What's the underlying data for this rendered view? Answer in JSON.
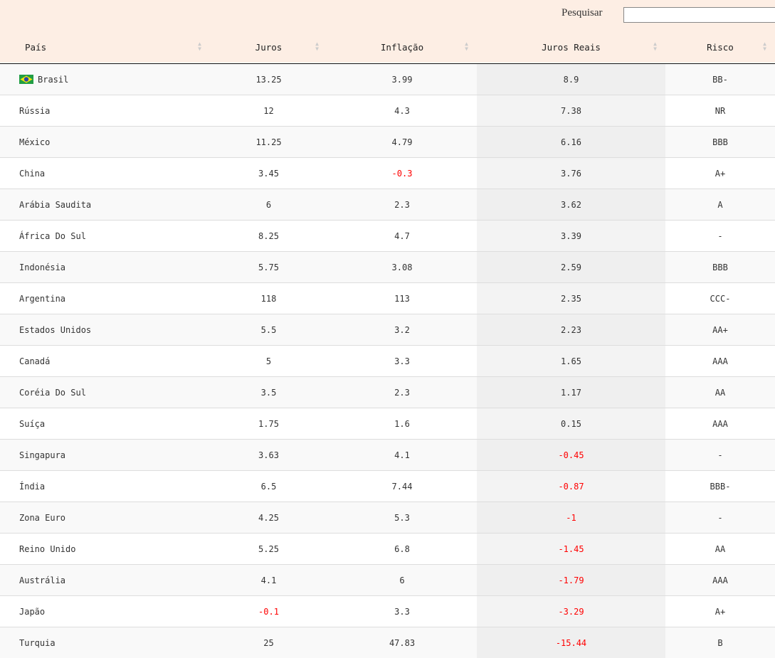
{
  "search_label": "Pesquisar",
  "table": {
    "headers": [
      "País",
      "Juros",
      "Inflação",
      "Juros Reais",
      "Risco"
    ],
    "rows": [
      [
        "Brasil",
        13.25,
        3.99,
        8.9,
        "BB-"
      ],
      [
        "Rússia",
        12,
        4.3,
        7.38,
        "NR"
      ],
      [
        "México",
        11.25,
        4.79,
        6.16,
        "BBB"
      ],
      [
        "China",
        3.45,
        -0.3,
        3.76,
        "A+"
      ],
      [
        "Arábia Saudita",
        6,
        2.3,
        3.62,
        "A"
      ],
      [
        "África Do Sul",
        8.25,
        4.7,
        3.39,
        "-"
      ],
      [
        "Indonésia",
        5.75,
        3.08,
        2.59,
        "BBB"
      ],
      [
        "Argentina",
        118,
        113,
        2.35,
        "CCC-"
      ],
      [
        "Estados Unidos",
        5.5,
        3.2,
        2.23,
        "AA+"
      ],
      [
        "Canadá",
        5,
        3.3,
        1.65,
        "AAA"
      ],
      [
        "Coréia Do Sul",
        3.5,
        2.3,
        1.17,
        "AA"
      ],
      [
        "Suíça",
        1.75,
        1.6,
        0.15,
        "AAA"
      ],
      [
        "Singapura",
        3.63,
        4.1,
        -0.45,
        "-"
      ],
      [
        "Índia",
        6.5,
        7.44,
        -0.87,
        "BBB-"
      ],
      [
        "Zona Euro",
        4.25,
        5.3,
        -1,
        "-"
      ],
      [
        "Reino Unido",
        5.25,
        6.8,
        -1.45,
        "AA"
      ],
      [
        "Austrália",
        4.1,
        6,
        -1.79,
        "AAA"
      ],
      [
        "Japão",
        -0.1,
        3.3,
        -3.29,
        "A+"
      ],
      [
        "Turquia",
        25,
        47.83,
        -15.44,
        "B"
      ]
    ]
  }
}
